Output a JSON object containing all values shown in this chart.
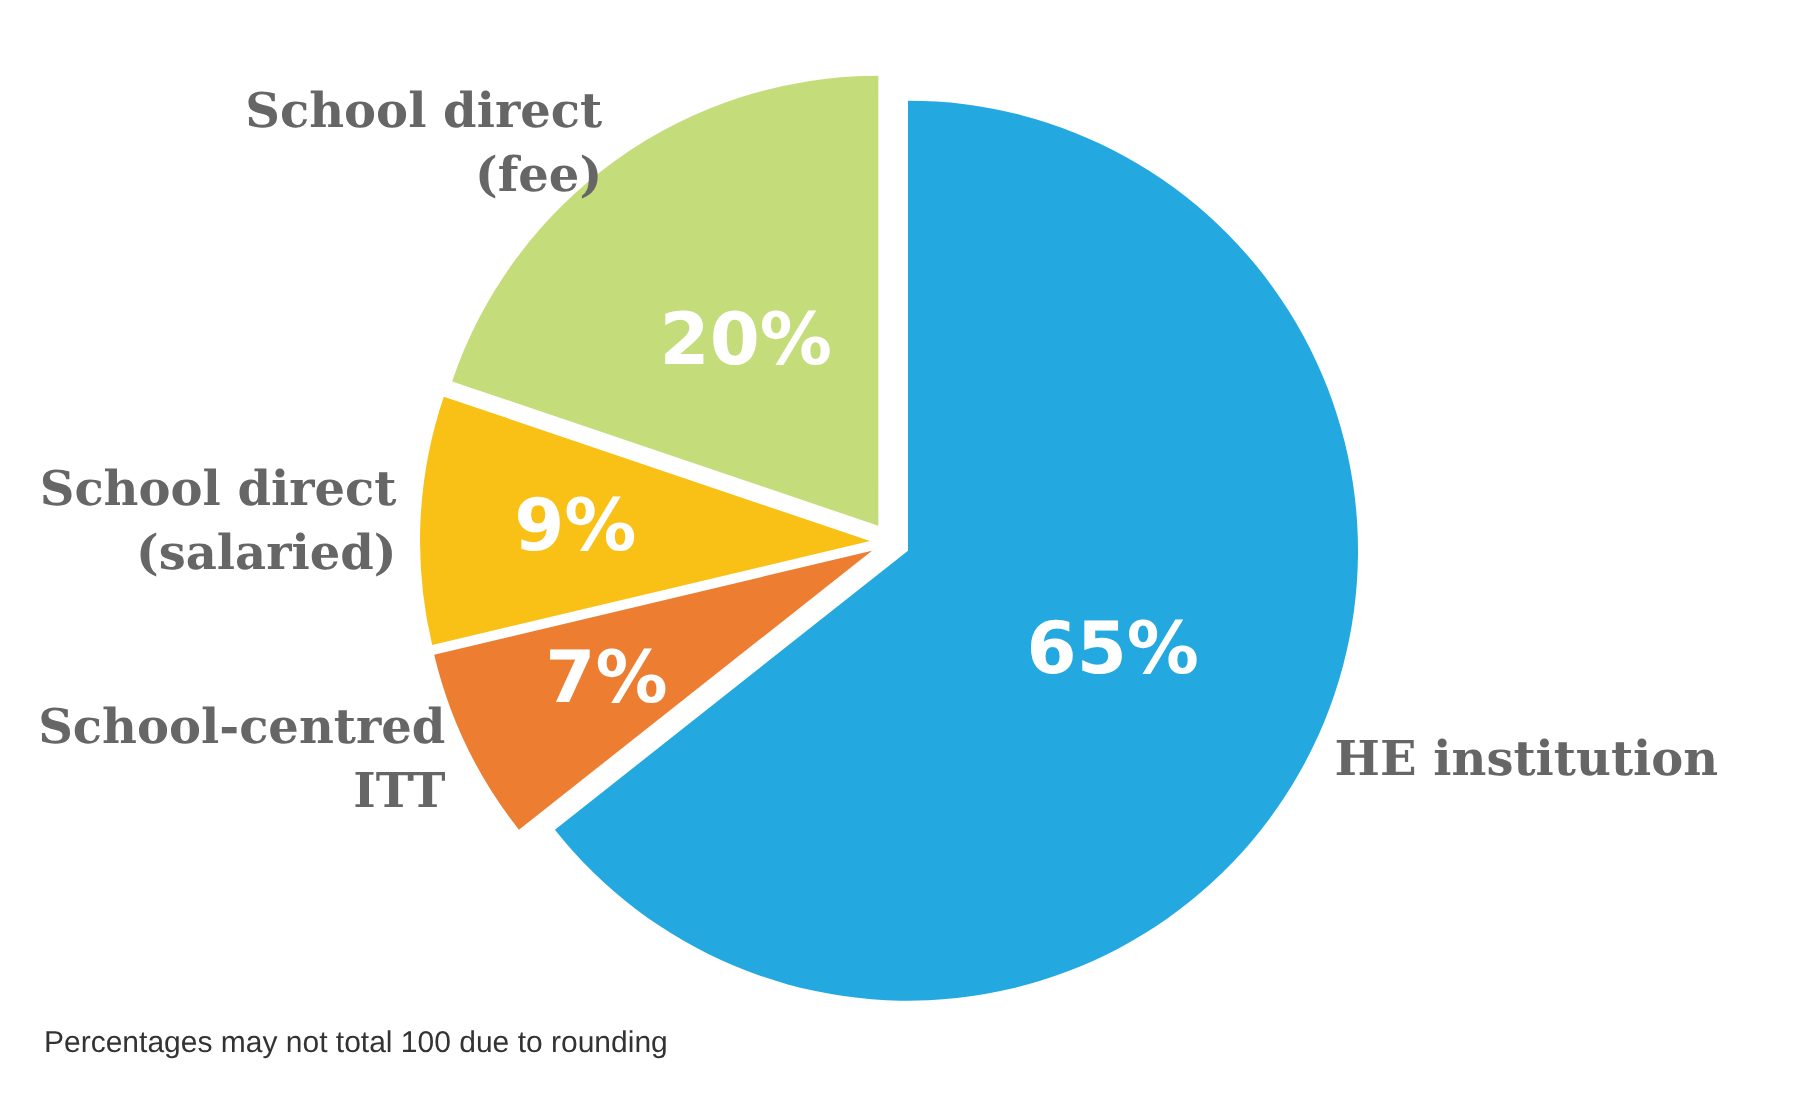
{
  "chart_data": {
    "type": "pie",
    "categories": [
      "HE institution",
      "School-centred ITT",
      "School direct (salaried)",
      "School direct (fee)"
    ],
    "values": [
      65,
      7,
      9,
      20
    ],
    "value_labels": [
      "65%",
      "7%",
      "9%",
      "20%"
    ],
    "colors": [
      "#23a8e0",
      "#ec7d31",
      "#f9c015",
      "#c5dc7a"
    ],
    "annotations": [
      "Percentages may not total 100 due to rounding"
    ]
  }
}
